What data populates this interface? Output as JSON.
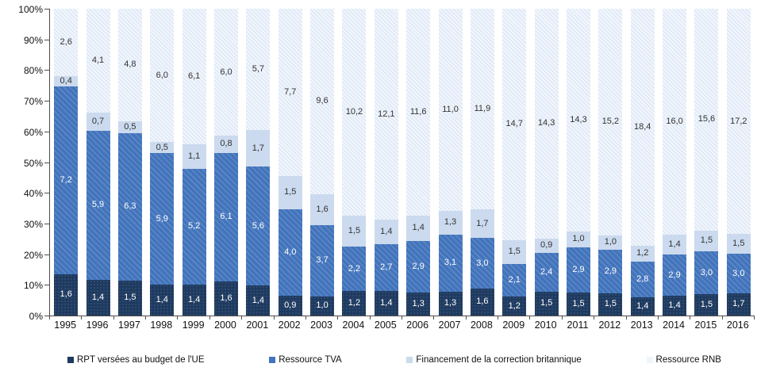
{
  "chart_data": {
    "type": "bar",
    "stacked": true,
    "normalized_to_percent": true,
    "title": "",
    "xlabel": "",
    "ylabel": "",
    "decimal_separator": ",",
    "grid": false,
    "legend_position": "bottom",
    "categories": [
      "1995",
      "1996",
      "1997",
      "1998",
      "1999",
      "2000",
      "2001",
      "2002",
      "2003",
      "2004",
      "2005",
      "2006",
      "2007",
      "2008",
      "2009",
      "2010",
      "2011",
      "2012",
      "2013",
      "2014",
      "2015",
      "2016"
    ],
    "series": [
      {
        "name": "RPT versées au budget de l'UE",
        "color": "#1F3A5F",
        "label_color": "#FFFFFF",
        "values": [
          1.6,
          1.4,
          1.5,
          1.4,
          1.4,
          1.6,
          1.4,
          0.9,
          1.0,
          1.2,
          1.4,
          1.3,
          1.3,
          1.6,
          1.2,
          1.5,
          1.5,
          1.5,
          1.4,
          1.4,
          1.5,
          1.7
        ],
        "labels": [
          "1,6",
          "1,4",
          "1,5",
          "1,4",
          "1,4",
          "1,6",
          "1,4",
          "0,9",
          "1,0",
          "1,2",
          "1,4",
          "1,3",
          "1,3",
          "1,6",
          "1,2",
          "1,5",
          "1,5",
          "1,5",
          "1,4",
          "1,4",
          "1,5",
          "1,7"
        ]
      },
      {
        "name": "Ressource TVA",
        "color": "#4274BC",
        "label_color": "#FFFFFF",
        "values": [
          7.2,
          5.9,
          6.3,
          5.9,
          5.2,
          6.1,
          5.6,
          4.0,
          3.7,
          2.2,
          2.7,
          2.9,
          3.1,
          3.0,
          2.1,
          2.4,
          2.9,
          2.9,
          2.8,
          2.9,
          3.0,
          3.0
        ],
        "labels": [
          "7,2",
          "5,9",
          "6,3",
          "5,9",
          "5,2",
          "6,1",
          "5,6",
          "4,0",
          "3,7",
          "2,2",
          "2,7",
          "2,9",
          "3,1",
          "3,0",
          "2,1",
          "2,4",
          "2,9",
          "2,9",
          "2,8",
          "2,9",
          "3,0",
          "3,0"
        ]
      },
      {
        "name": "Financement de la correction britannique",
        "color": "#CBDAEE",
        "label_color": "#333333",
        "values": [
          0.4,
          0.7,
          0.5,
          0.5,
          1.1,
          0.8,
          1.7,
          1.5,
          1.6,
          1.5,
          1.4,
          1.4,
          1.3,
          1.7,
          1.5,
          0.9,
          1.0,
          1.0,
          1.2,
          1.4,
          1.5,
          1.5
        ],
        "labels": [
          "0,4",
          "0,7",
          "0,5",
          "0,5",
          "1,1",
          "0,8",
          "1,7",
          "1,5",
          "1,6",
          "1,5",
          "1,4",
          "1,4",
          "1,3",
          "1,7",
          "1,5",
          "0,9",
          "1,0",
          "1,0",
          "1,2",
          "1,4",
          "1,5",
          "1,5"
        ]
      },
      {
        "name": "Ressource RNB",
        "color": "#F0F5FC",
        "label_color": "#333333",
        "values": [
          2.6,
          4.1,
          4.8,
          6.0,
          6.1,
          6.0,
          5.7,
          7.7,
          9.6,
          10.2,
          12.1,
          11.6,
          11.0,
          11.9,
          14.7,
          14.3,
          14.3,
          15.2,
          18.4,
          16.0,
          15.6,
          17.2
        ],
        "labels": [
          "2,6",
          "4,1",
          "4,8",
          "6,0",
          "6,1",
          "6,0",
          "5,7",
          "7,7",
          "9,6",
          "10,2",
          "12,1",
          "11,6",
          "11,0",
          "11,9",
          "14,7",
          "14,3",
          "14,3",
          "15,2",
          "18,4",
          "16,0",
          "15,6",
          "17,2"
        ]
      }
    ],
    "y_axis": {
      "min": 0,
      "max": 100,
      "tick_labels": [
        "0%",
        "10%",
        "20%",
        "30%",
        "40%",
        "50%",
        "60%",
        "70%",
        "80%",
        "90%",
        "100%"
      ]
    }
  }
}
